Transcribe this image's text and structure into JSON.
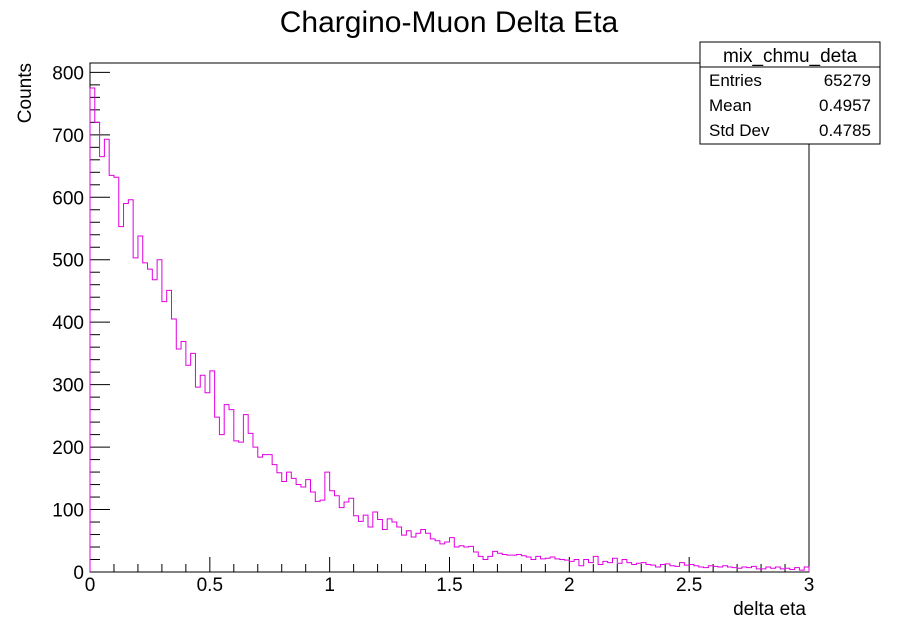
{
  "chart_data": {
    "type": "bar",
    "title": "Chargino-Muon Delta Eta",
    "xlabel": "delta eta",
    "ylabel": "Counts",
    "xlim": [
      0,
      3
    ],
    "ylim": [
      0,
      815
    ],
    "x_ticks": [
      0,
      0.5,
      1,
      1.5,
      2,
      2.5,
      3
    ],
    "x_tick_labels": [
      "0",
      "0.5",
      "1",
      "1.5",
      "2",
      "2.5",
      "3"
    ],
    "y_ticks": [
      0,
      100,
      200,
      300,
      400,
      500,
      600,
      700,
      800
    ],
    "y_tick_labels": [
      "0",
      "100",
      "200",
      "300",
      "400",
      "500",
      "600",
      "700",
      "800"
    ],
    "grid": false,
    "legend": "none",
    "line_color": "#e000e0",
    "bin_width": 0.02,
    "values": [
      775,
      720,
      665,
      693,
      635,
      632,
      553,
      590,
      596,
      503,
      538,
      495,
      485,
      468,
      500,
      433,
      451,
      405,
      357,
      369,
      331,
      350,
      296,
      315,
      287,
      322,
      248,
      220,
      268,
      260,
      210,
      208,
      252,
      222,
      200,
      184,
      188,
      188,
      172,
      159,
      145,
      160,
      150,
      140,
      136,
      148,
      128,
      113,
      115,
      160,
      130,
      122,
      103,
      112,
      118,
      90,
      81,
      91,
      72,
      96,
      84,
      68,
      85,
      80,
      72,
      59,
      66,
      56,
      62,
      68,
      62,
      53,
      50,
      45,
      48,
      55,
      40,
      42,
      40,
      41,
      32,
      25,
      20,
      25,
      33,
      30,
      28,
      27,
      27,
      28,
      26,
      24,
      20,
      25,
      21,
      22,
      24,
      21,
      20,
      19,
      17,
      20,
      10,
      20,
      15,
      25,
      12,
      17,
      15,
      22,
      14,
      20,
      15,
      12,
      14,
      15,
      12,
      11,
      8,
      12,
      13,
      10,
      9,
      15,
      11,
      12,
      10,
      8,
      7,
      10,
      9,
      8,
      10,
      8,
      7,
      6,
      8,
      7,
      9,
      5,
      5,
      8,
      6,
      8,
      5,
      6,
      4,
      7,
      3,
      8
    ]
  },
  "stats_box": {
    "name": "mix_chmu_deta",
    "rows": [
      {
        "label": "Entries",
        "value": "65279"
      },
      {
        "label": "Mean",
        "value": "0.4957"
      },
      {
        "label": "Std Dev",
        "value": "0.4785"
      }
    ]
  }
}
